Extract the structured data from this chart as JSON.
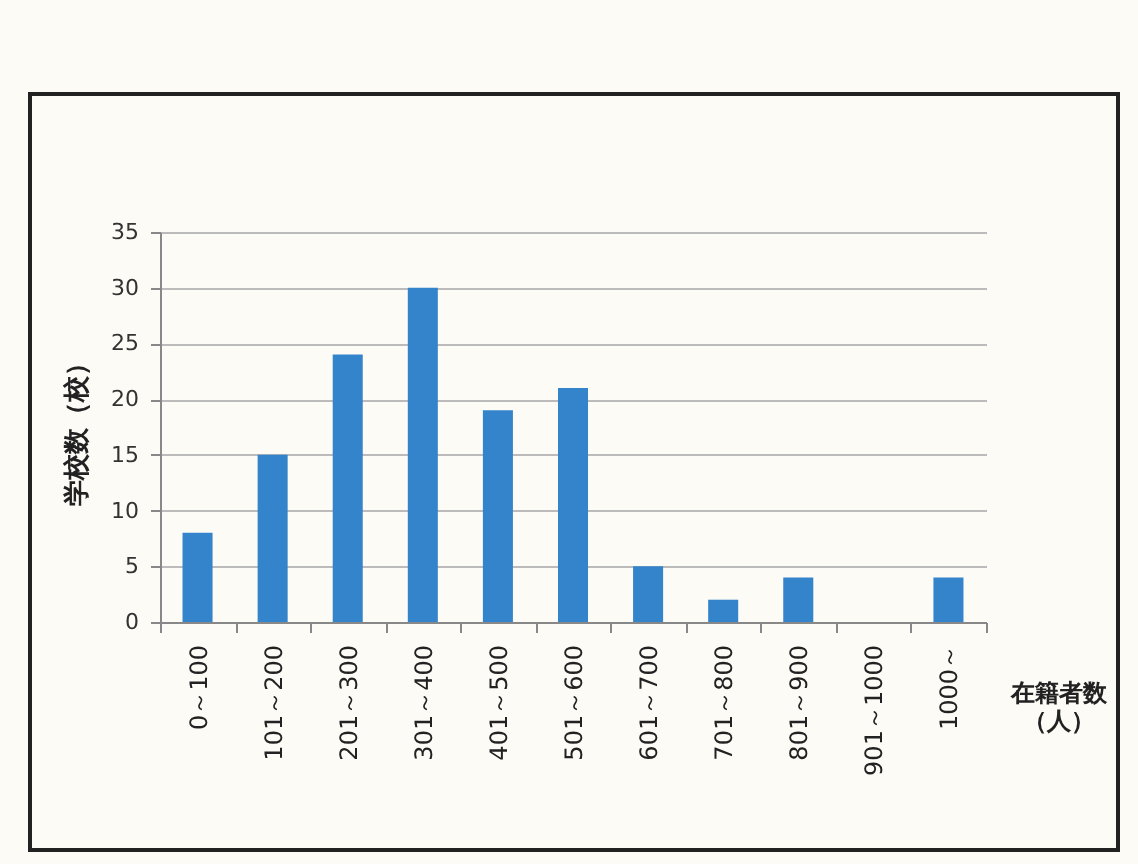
{
  "chart_data": {
    "type": "bar",
    "xlabel": "在籍者数（人）",
    "ylabel": "学校数（校）",
    "categories": [
      "0～100",
      "101～200",
      "201～300",
      "301～400",
      "401～500",
      "501～600",
      "601～700",
      "701～800",
      "801～900",
      "901～1000",
      "1000～"
    ],
    "values": [
      8,
      15,
      24,
      30,
      19,
      21,
      5,
      2,
      4,
      0,
      4
    ],
    "color": "#3484cc",
    "ylim": [
      0,
      35
    ],
    "yticks": [
      0,
      5,
      10,
      15,
      20,
      25,
      30,
      35
    ],
    "grid": "y"
  }
}
